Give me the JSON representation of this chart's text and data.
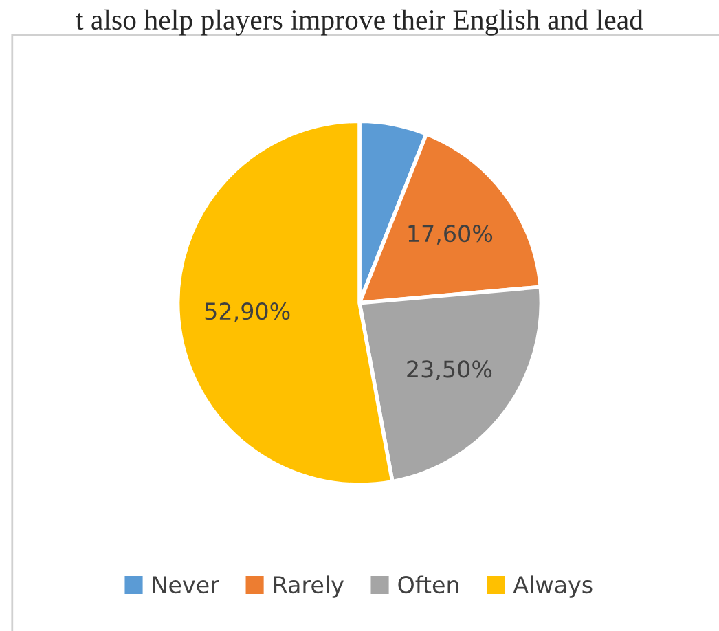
{
  "chart_data": {
    "type": "pie",
    "categories": [
      "Never",
      "Rarely",
      "Often",
      "Always"
    ],
    "values": [
      6.0,
      17.6,
      23.5,
      52.9
    ],
    "value_labels": [
      null,
      "17,60%",
      "23,50%",
      "52,90%"
    ],
    "colors": [
      "#5b9bd5",
      "#ed7d31",
      "#a5a5a5",
      "#ffc000"
    ],
    "legend": "bottom",
    "annotations": [
      "t also help players improve their English and lead"
    ]
  }
}
